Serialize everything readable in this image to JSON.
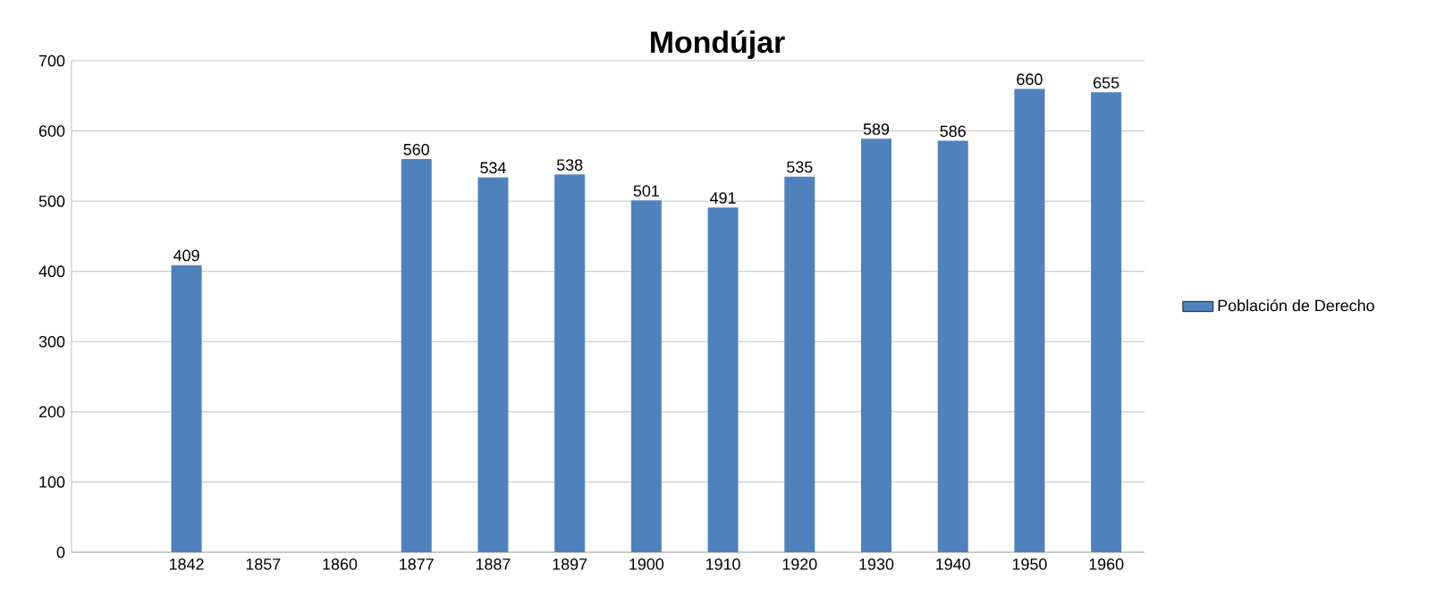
{
  "chart_data": {
    "type": "bar",
    "title": "Mondújar",
    "categories": [
      null,
      "1842",
      "1857",
      "1860",
      "1877",
      "1887",
      "1897",
      "1900",
      "1910",
      "1920",
      "1930",
      "1940",
      "1950",
      "1960"
    ],
    "series": [
      {
        "name": "Población de Derecho",
        "color": "#4f81bd",
        "values": [
          null,
          409,
          null,
          null,
          560,
          534,
          538,
          501,
          491,
          535,
          589,
          586,
          660,
          655
        ]
      }
    ],
    "ylim": [
      0,
      700
    ],
    "yticks": [
      0,
      100,
      200,
      300,
      400,
      500,
      600,
      700
    ],
    "grid": "y",
    "legend": "right",
    "data_labels": true
  }
}
